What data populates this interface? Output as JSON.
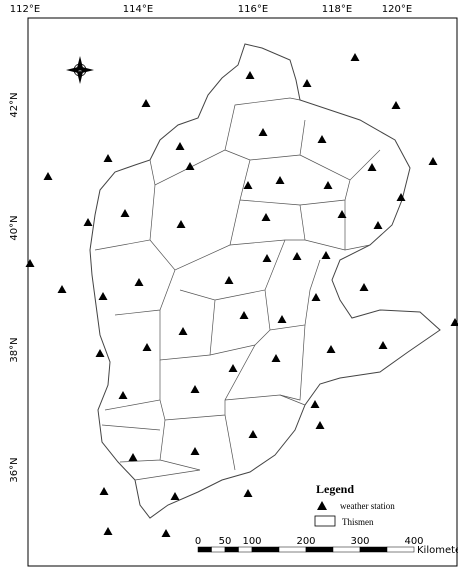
{
  "map": {
    "lon_labels": [
      "112°E",
      "114°E",
      "116°E",
      "118°E",
      "120°E"
    ],
    "lat_labels": [
      "42°N",
      "40°N",
      "38°N",
      "36°N"
    ],
    "legend": {
      "title": "Legend",
      "items": [
        "weather station",
        "Thismen"
      ]
    },
    "scale_bar": {
      "ticks": [
        0,
        50,
        100,
        200,
        300,
        400
      ],
      "unit": "Kilometers"
    }
  }
}
